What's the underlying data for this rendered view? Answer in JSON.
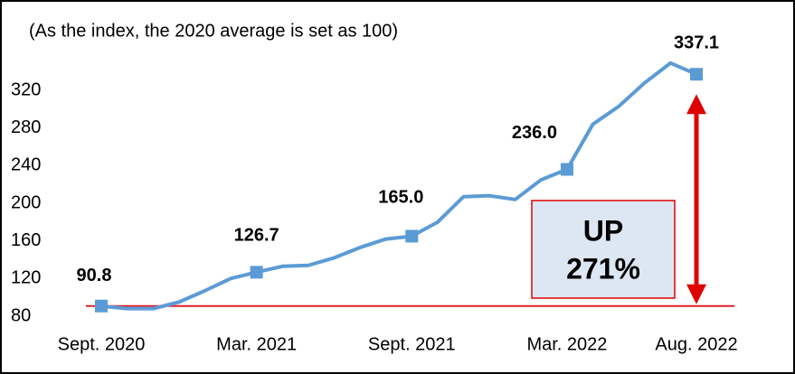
{
  "chart_data": {
    "type": "line",
    "subtitle": "(As the index, the 2020 average is set as 100)",
    "categories": [
      "Sept. 2020",
      null,
      null,
      null,
      null,
      null,
      "Mar. 2021",
      null,
      null,
      null,
      null,
      null,
      "Sept. 2021",
      null,
      null,
      null,
      null,
      null,
      "Mar. 2022",
      null,
      null,
      null,
      null,
      "Aug. 2022"
    ],
    "series": [
      {
        "name": "Index",
        "color": "#5b9bd5",
        "values": [
          90.8,
          88,
          88,
          95,
          107,
          120,
          126.7,
          133,
          134,
          142,
          153,
          162,
          165.0,
          180,
          207,
          208,
          204,
          225,
          236.0,
          284,
          303,
          328,
          349,
          337.1
        ],
        "value_labels": [
          "90.8",
          null,
          null,
          null,
          null,
          null,
          "126.7",
          null,
          null,
          null,
          null,
          null,
          "165.0",
          null,
          null,
          null,
          null,
          null,
          "236.0",
          null,
          null,
          null,
          null,
          "337.1"
        ]
      }
    ],
    "ylim": [
      80,
      360
    ],
    "yticks": [
      80,
      120,
      160,
      200,
      240,
      280,
      320
    ],
    "annotation": [
      "UP",
      "271%"
    ]
  }
}
